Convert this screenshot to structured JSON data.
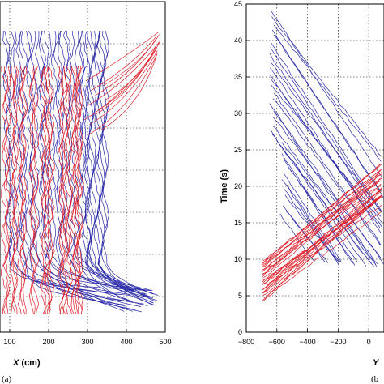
{
  "chart_data": [
    {
      "type": "line",
      "panel_label": "(a)",
      "xlabel_var": "X",
      "xlabel_unit": " (cm)",
      "ylabel": "",
      "x_ticks": [
        "100",
        "200",
        "300",
        "400",
        "500"
      ],
      "y_ticks": [],
      "xlim": [
        75,
        500
      ],
      "grid": true,
      "series": [
        {
          "color": "#2a2aa8",
          "values": []
        },
        {
          "color": "#e0202a",
          "values": []
        }
      ]
    },
    {
      "type": "line",
      "panel_label": "(b",
      "xlabel_var": "Y",
      "ylabel": "Time (s)",
      "x_ticks": [
        "−800",
        "−600",
        "−400",
        "−200",
        "0"
      ],
      "y_ticks": [
        "0",
        "5",
        "10",
        "15",
        "20",
        "25",
        "30",
        "35",
        "40",
        "45"
      ],
      "xlim": [
        -800,
        100
      ],
      "ylim": [
        0,
        45
      ],
      "grid": true,
      "series": [
        {
          "color": "#2a2aa8",
          "values": []
        },
        {
          "color": "#e0202a",
          "values": []
        }
      ]
    }
  ]
}
